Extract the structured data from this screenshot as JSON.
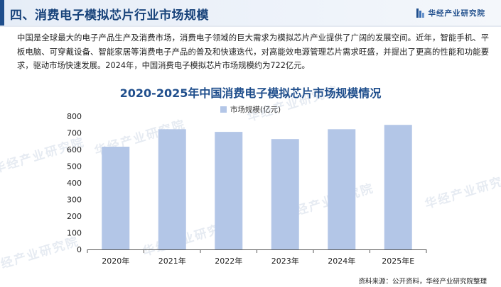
{
  "header": {
    "title": "四、消费电子模拟芯片行业市场规模",
    "brand": "华经产业研究院"
  },
  "intro_text": "中国是全球最大的电子产品生产及消费市场，消费电子领域的巨大需求为模拟芯片产业提供了广阔的发展空间。近年，智能手机、平板电脑、可穿戴设备、智能家居等消费电子产品的普及和快速迭代，对高能效电源管理芯片需求旺盛，并提出了更高的性能和功能要求，驱动市场快速发展。2024年，中国消费电子模拟芯片市场规模约为722亿元。",
  "chart_data": {
    "type": "bar",
    "title": "2020-2025年中国消费电子模拟芯片市场规模情况",
    "categories": [
      "2020年",
      "2021年",
      "2022年",
      "2023年",
      "2024年",
      "2025年E"
    ],
    "series": [
      {
        "name": "市场规模(亿元)",
        "values": [
          617,
          722,
          706,
          663,
          722,
          748
        ]
      }
    ],
    "ylim": [
      0,
      800
    ],
    "yticks": [
      0,
      100,
      200,
      300,
      400,
      500,
      600,
      700,
      800
    ],
    "bar_color": "#b3c6e7",
    "legend_position": "top-center",
    "grid": false
  },
  "watermarks": [
    "华经产业研究院",
    "华经产业研究院",
    "华经产业研究院",
    "华经产业研究院",
    "华经产业研究院",
    "华经产业研究院",
    "华经产业研究院"
  ],
  "source": "资料来源：公开资料，华经产业研究院整理",
  "colors": {
    "brand": "#1f4e8c",
    "bar": "#b3c6e7",
    "header_bg": "#e6edf7"
  }
}
